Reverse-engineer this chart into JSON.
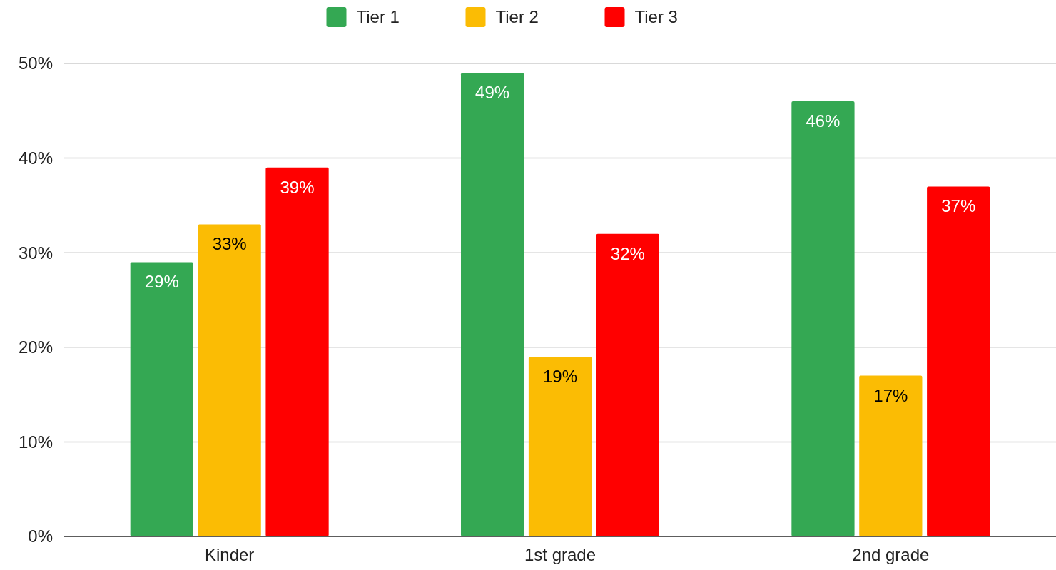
{
  "chart_data": {
    "type": "bar",
    "categories": [
      "Kinder",
      "1st grade",
      "2nd grade"
    ],
    "series": [
      {
        "name": "Tier 1",
        "color": "#34a853",
        "values": [
          29,
          49,
          46
        ],
        "value_labels": [
          "29%",
          "49%",
          "46%"
        ]
      },
      {
        "name": "Tier 2",
        "color": "#fbbc04",
        "values": [
          33,
          19,
          17
        ],
        "value_labels": [
          "33%",
          "19%",
          "17%"
        ]
      },
      {
        "name": "Tier 3",
        "color": "#ff0000",
        "values": [
          39,
          32,
          37
        ],
        "value_labels": [
          "39%",
          "32%",
          "37%"
        ]
      }
    ],
    "ylim": [
      0,
      50
    ],
    "yticks": [
      {
        "value": 0,
        "label": "0%"
      },
      {
        "value": 10,
        "label": "10%"
      },
      {
        "value": 20,
        "label": "20%"
      },
      {
        "value": 30,
        "label": "30%"
      },
      {
        "value": 40,
        "label": "40%"
      },
      {
        "value": 50,
        "label": "50%"
      }
    ],
    "grid": "y",
    "legend": "top"
  }
}
